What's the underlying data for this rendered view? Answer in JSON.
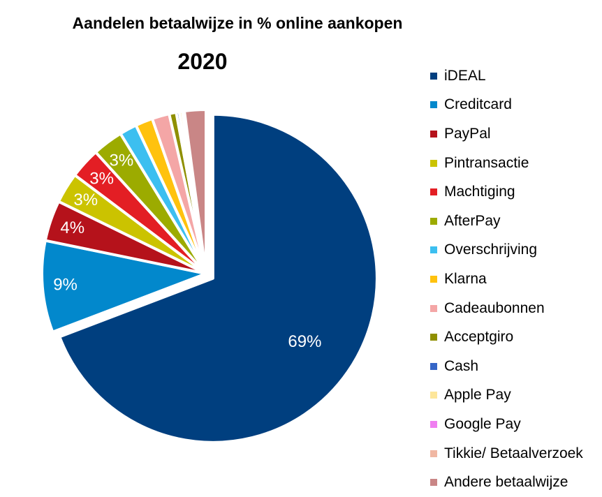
{
  "chart_data": {
    "type": "pie",
    "title": "Aandelen betaalwijze in % online aankopen",
    "subtitle": "2020",
    "legend_position": "right",
    "categories": [
      "iDEAL",
      "Creditcard",
      "PayPal",
      "Pintransactie",
      "Machtiging",
      "AfterPay",
      "Overschrijving",
      "Klarna",
      "Cadeaubonnen",
      "Acceptgiro",
      "Cash",
      "Apple Pay",
      "Google Pay",
      "Tikkie/ Betaalverzoek",
      "Andere betaalwijze"
    ],
    "values": [
      69,
      9,
      4,
      3,
      3,
      3,
      1.7,
      1.7,
      1.7,
      0.7,
      0.3,
      0.3,
      0.1,
      0.1,
      2.1
    ],
    "data_labels": [
      "69%",
      "9%",
      "4%",
      "3%",
      "3%",
      "3%",
      "",
      "",
      "",
      "",
      "",
      "",
      "",
      "",
      ""
    ],
    "colors": [
      "#003f7f",
      "#0288cc",
      "#b5121b",
      "#cbc300",
      "#e31e24",
      "#9cab00",
      "#3cbff0",
      "#ffc20e",
      "#f4a6a6",
      "#8f8f00",
      "#3566c7",
      "#fde69a",
      "#ef7ef0",
      "#f0b7a3",
      "#c98686"
    ],
    "exploded": [
      "iDEAL"
    ]
  }
}
